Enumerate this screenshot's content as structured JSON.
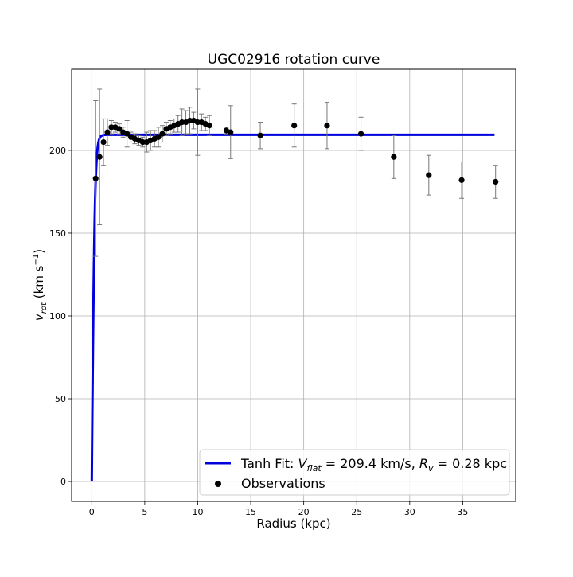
{
  "chart_data": {
    "type": "scatter",
    "title": "UGC02916 rotation curve",
    "xlabel": "Radius (kpc)",
    "ylabel_main": "v",
    "ylabel_sub": "rot",
    "ylabel_unit": " (km s",
    "ylabel_exp": "−1",
    "ylabel_close": ")",
    "xlim": [
      -1.9,
      40.0
    ],
    "ylim": [
      -12,
      249
    ],
    "xticks": [
      0,
      5,
      10,
      15,
      20,
      25,
      30,
      35
    ],
    "yticks": [
      0,
      50,
      100,
      150,
      200
    ],
    "grid": true,
    "legend_position": "lower-right",
    "fit": {
      "name": "Tanh Fit: V_flat = 209.4 km/s, R_v = 0.28 kpc",
      "legend_prefix": "Tanh Fit: ",
      "legend_v": "V",
      "legend_v_sub": "flat",
      "legend_mid": " = 209.4 km/s, ",
      "legend_r": "R",
      "legend_r_sub": "v",
      "legend_suffix": " = 0.28 kpc",
      "v_flat": 209.4,
      "r_v": 0.28,
      "x_start": 0,
      "x_end": 38.0,
      "color": "#0000dd"
    },
    "observations": {
      "name": "Observations",
      "color": "#000000",
      "error_color": "#777777",
      "points": [
        {
          "x": 0.37,
          "y": 183,
          "err": 47
        },
        {
          "x": 0.74,
          "y": 196,
          "err": 41
        },
        {
          "x": 1.11,
          "y": 205,
          "err": 14
        },
        {
          "x": 1.48,
          "y": 211,
          "err": 8
        },
        {
          "x": 1.85,
          "y": 214,
          "err": 4
        },
        {
          "x": 2.22,
          "y": 214,
          "err": 3
        },
        {
          "x": 2.59,
          "y": 213,
          "err": 3
        },
        {
          "x": 2.96,
          "y": 211,
          "err": 3
        },
        {
          "x": 3.33,
          "y": 210,
          "err": 8
        },
        {
          "x": 3.7,
          "y": 208,
          "err": 3
        },
        {
          "x": 4.07,
          "y": 207,
          "err": 3
        },
        {
          "x": 4.44,
          "y": 206,
          "err": 3
        },
        {
          "x": 4.81,
          "y": 205,
          "err": 3
        },
        {
          "x": 5.18,
          "y": 205,
          "err": 6
        },
        {
          "x": 5.55,
          "y": 206,
          "err": 6
        },
        {
          "x": 5.92,
          "y": 207,
          "err": 5
        },
        {
          "x": 6.29,
          "y": 208,
          "err": 6
        },
        {
          "x": 6.66,
          "y": 210,
          "err": 5
        },
        {
          "x": 7.03,
          "y": 213,
          "err": 4
        },
        {
          "x": 7.4,
          "y": 214,
          "err": 4
        },
        {
          "x": 7.77,
          "y": 215,
          "err": 4
        },
        {
          "x": 8.14,
          "y": 216,
          "err": 5
        },
        {
          "x": 8.51,
          "y": 217,
          "err": 8
        },
        {
          "x": 8.88,
          "y": 217,
          "err": 7
        },
        {
          "x": 9.25,
          "y": 218,
          "err": 8
        },
        {
          "x": 9.62,
          "y": 218,
          "err": 5
        },
        {
          "x": 9.99,
          "y": 217,
          "err": 20
        },
        {
          "x": 10.36,
          "y": 217,
          "err": 5
        },
        {
          "x": 10.73,
          "y": 216,
          "err": 4
        },
        {
          "x": 11.1,
          "y": 215,
          "err": 6
        },
        {
          "x": 12.7,
          "y": 212,
          "err": 2
        },
        {
          "x": 13.1,
          "y": 211,
          "err": 16
        },
        {
          "x": 15.9,
          "y": 209,
          "err": 8
        },
        {
          "x": 19.1,
          "y": 215,
          "err": 13
        },
        {
          "x": 22.2,
          "y": 215,
          "err": 14
        },
        {
          "x": 25.4,
          "y": 210,
          "err": 10
        },
        {
          "x": 28.5,
          "y": 196,
          "err": 13
        },
        {
          "x": 31.8,
          "y": 185,
          "err": 12
        },
        {
          "x": 34.9,
          "y": 182,
          "err": 11
        },
        {
          "x": 38.1,
          "y": 181,
          "err": 10
        }
      ]
    }
  }
}
